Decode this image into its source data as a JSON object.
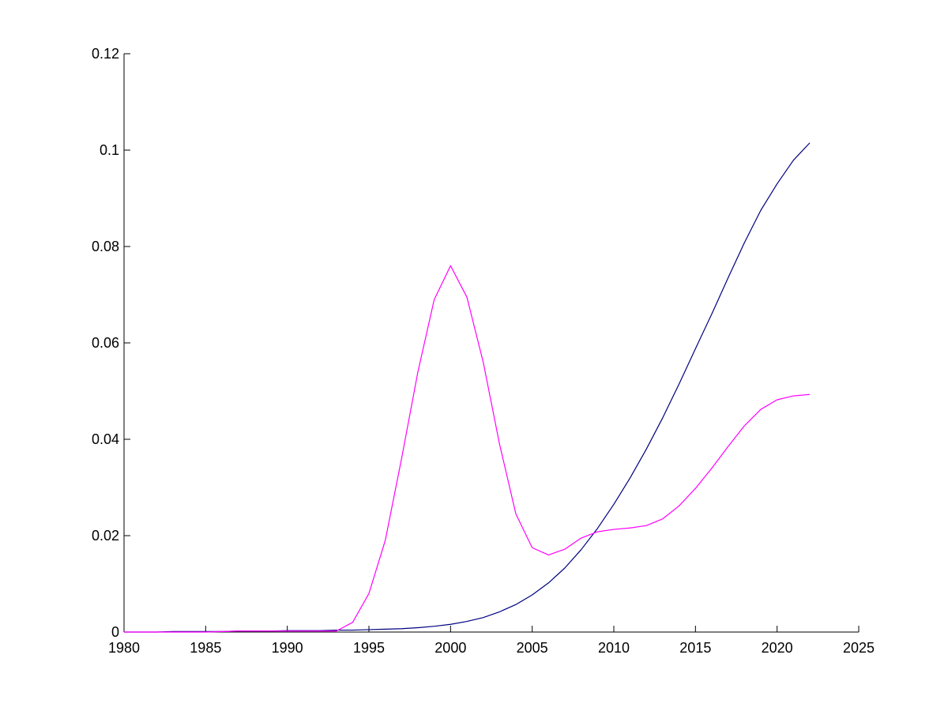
{
  "chart_data": {
    "type": "line",
    "title": "",
    "xlabel": "",
    "ylabel": "",
    "xlim": [
      1980,
      2025
    ],
    "ylim": [
      0,
      0.12
    ],
    "grid": false,
    "legend": "none",
    "x_ticks": [
      "1980",
      "1985",
      "1990",
      "1995",
      "2000",
      "2005",
      "2010",
      "2015",
      "2020",
      "2025"
    ],
    "y_ticks": [
      "0",
      "0.02",
      "0.04",
      "0.06",
      "0.08",
      "0.1",
      "0.12"
    ],
    "x": [
      1980,
      1981,
      1982,
      1983,
      1984,
      1985,
      1986,
      1987,
      1988,
      1989,
      1990,
      1991,
      1992,
      1993,
      1994,
      1995,
      1996,
      1997,
      1998,
      1999,
      2000,
      2001,
      2002,
      2003,
      2004,
      2005,
      2006,
      2007,
      2008,
      2009,
      2010,
      2011,
      2012,
      2013,
      2014,
      2015,
      2016,
      2017,
      2018,
      2019,
      2020,
      2021,
      2022
    ],
    "series": [
      {
        "color": "#000080",
        "values": [
          0,
          0,
          0,
          0.0001,
          0.0001,
          0.0001,
          0.0001,
          0.0002,
          0.0002,
          0.0002,
          0.0003,
          0.0003,
          0.0003,
          0.0004,
          0.0004,
          0.0005,
          0.0006,
          0.0007,
          0.0009,
          0.0012,
          0.0016,
          0.0022,
          0.003,
          0.0042,
          0.0057,
          0.0077,
          0.0102,
          0.0133,
          0.0171,
          0.0215,
          0.0265,
          0.032,
          0.038,
          0.0445,
          0.0515,
          0.0588,
          0.066,
          0.0735,
          0.0808,
          0.0875,
          0.093,
          0.0979,
          0.1015
        ]
      },
      {
        "color": "#ff00ff",
        "values": [
          0,
          0,
          0,
          0,
          0,
          0,
          0.0001,
          0.0002,
          0.0002,
          0.0002,
          0.0002,
          0.0002,
          0.0002,
          0.0002,
          0.002,
          0.008,
          0.019,
          0.036,
          0.054,
          0.069,
          0.076,
          0.0695,
          0.056,
          0.039,
          0.0245,
          0.0175,
          0.016,
          0.0172,
          0.0195,
          0.0208,
          0.0213,
          0.0216,
          0.0221,
          0.0235,
          0.0262,
          0.0298,
          0.034,
          0.0385,
          0.0428,
          0.0462,
          0.0482,
          0.049,
          0.0493
        ]
      }
    ]
  }
}
